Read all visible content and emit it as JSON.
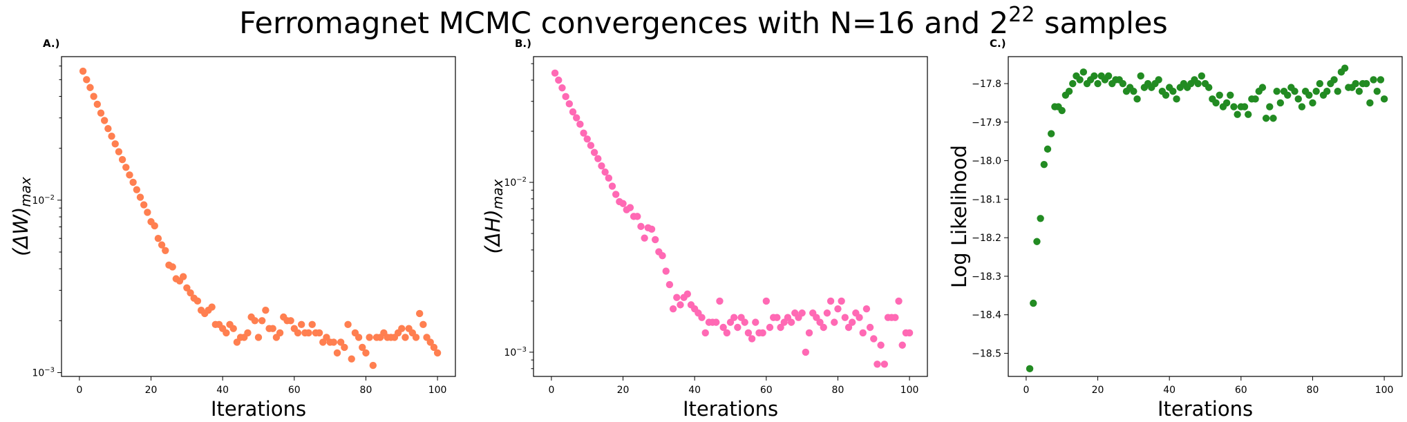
{
  "figure": {
    "suptitle": "Ferromagnet MCMC convergences with N=16 and 2",
    "suptitle_sup": "22",
    "suptitle_tail": " samples"
  },
  "chart_data": [
    {
      "type": "scatter",
      "panel_label": "A.)",
      "xlabel": "Iterations",
      "ylabel_main": "(ΔW)",
      "ylabel_sub": "max",
      "yscale": "log",
      "xlim": [
        -5,
        105
      ],
      "ylim": [
        0.00095,
        0.068
      ],
      "xticks": [
        0,
        20,
        40,
        60,
        80,
        100
      ],
      "yticks": [
        {
          "value": 0.01,
          "base": "10",
          "exp": "−2"
        },
        {
          "value": 0.001,
          "base": "10",
          "exp": "−3"
        }
      ],
      "color": "#ff7f50",
      "x": [
        1,
        2,
        3,
        4,
        5,
        6,
        7,
        8,
        9,
        10,
        11,
        12,
        13,
        14,
        15,
        16,
        17,
        18,
        19,
        20,
        21,
        22,
        23,
        24,
        25,
        26,
        27,
        28,
        29,
        30,
        31,
        32,
        33,
        34,
        35,
        36,
        37,
        38,
        39,
        40,
        41,
        42,
        43,
        44,
        45,
        46,
        47,
        48,
        49,
        50,
        51,
        52,
        53,
        54,
        55,
        56,
        57,
        58,
        59,
        60,
        61,
        62,
        63,
        64,
        65,
        66,
        67,
        68,
        69,
        70,
        71,
        72,
        73,
        74,
        75,
        76,
        77,
        78,
        79,
        80,
        81,
        82,
        83,
        84,
        85,
        86,
        87,
        88,
        89,
        90,
        91,
        92,
        93,
        94,
        95,
        96,
        97,
        98,
        99,
        100
      ],
      "y": [
        0.056,
        0.05,
        0.045,
        0.04,
        0.036,
        0.032,
        0.029,
        0.026,
        0.0235,
        0.0212,
        0.0191,
        0.0172,
        0.0155,
        0.014,
        0.0127,
        0.0115,
        0.0104,
        0.0094,
        0.0085,
        0.0075,
        0.0071,
        0.006,
        0.0055,
        0.0051,
        0.0042,
        0.0041,
        0.0035,
        0.0034,
        0.0036,
        0.0031,
        0.0029,
        0.0027,
        0.0026,
        0.0023,
        0.0022,
        0.0023,
        0.0024,
        0.0019,
        0.0019,
        0.0018,
        0.0017,
        0.0019,
        0.0018,
        0.0015,
        0.0016,
        0.0016,
        0.0017,
        0.0021,
        0.002,
        0.0016,
        0.002,
        0.0023,
        0.0018,
        0.0018,
        0.0016,
        0.0017,
        0.0021,
        0.002,
        0.002,
        0.0018,
        0.0017,
        0.0019,
        0.0017,
        0.0017,
        0.0019,
        0.0017,
        0.0017,
        0.0015,
        0.0016,
        0.0015,
        0.0015,
        0.0013,
        0.0015,
        0.0014,
        0.0019,
        0.0012,
        0.0017,
        0.0016,
        0.0014,
        0.0013,
        0.0016,
        0.0011,
        0.0016,
        0.0016,
        0.0017,
        0.0016,
        0.0016,
        0.0016,
        0.0017,
        0.0018,
        0.0016,
        0.0018,
        0.0017,
        0.0016,
        0.0022,
        0.0019,
        0.0016,
        0.0015,
        0.0014,
        0.0013
      ]
    },
    {
      "type": "scatter",
      "panel_label": "B.)",
      "xlabel": "Iterations",
      "ylabel_main": "(ΔH)",
      "ylabel_sub": "max",
      "yscale": "log",
      "xlim": [
        -5,
        105
      ],
      "ylim": [
        0.00072,
        0.055
      ],
      "xticks": [
        0,
        20,
        40,
        60,
        80,
        100
      ],
      "yticks": [
        {
          "value": 0.01,
          "base": "10",
          "exp": "−2"
        },
        {
          "value": 0.001,
          "base": "10",
          "exp": "−3"
        }
      ],
      "color": "#ff69b4",
      "x": [
        1,
        2,
        3,
        4,
        5,
        6,
        7,
        8,
        9,
        10,
        11,
        12,
        13,
        14,
        15,
        16,
        17,
        18,
        19,
        20,
        21,
        22,
        23,
        24,
        25,
        26,
        27,
        28,
        29,
        30,
        31,
        32,
        33,
        34,
        35,
        36,
        37,
        38,
        39,
        40,
        41,
        42,
        43,
        44,
        45,
        46,
        47,
        48,
        49,
        50,
        51,
        52,
        53,
        54,
        55,
        56,
        57,
        58,
        59,
        60,
        61,
        62,
        63,
        64,
        65,
        66,
        67,
        68,
        69,
        70,
        71,
        72,
        73,
        74,
        75,
        76,
        77,
        78,
        79,
        80,
        81,
        82,
        83,
        84,
        85,
        86,
        87,
        88,
        89,
        90,
        91,
        92,
        93,
        94,
        95,
        96,
        97,
        98,
        99,
        100
      ],
      "y": [
        0.044,
        0.04,
        0.036,
        0.032,
        0.029,
        0.026,
        0.024,
        0.022,
        0.0195,
        0.018,
        0.0165,
        0.015,
        0.0138,
        0.0125,
        0.0115,
        0.0106,
        0.0095,
        0.0085,
        0.0077,
        0.0075,
        0.0069,
        0.0071,
        0.0063,
        0.0063,
        0.0055,
        0.0047,
        0.0054,
        0.0053,
        0.0046,
        0.0039,
        0.0037,
        0.003,
        0.0025,
        0.0018,
        0.0021,
        0.0019,
        0.0021,
        0.0022,
        0.0019,
        0.0018,
        0.0017,
        0.0016,
        0.0013,
        0.0015,
        0.0015,
        0.0015,
        0.002,
        0.0014,
        0.0013,
        0.0015,
        0.0016,
        0.0014,
        0.0016,
        0.0015,
        0.0013,
        0.0012,
        0.0015,
        0.0013,
        0.0013,
        0.002,
        0.0014,
        0.0016,
        0.0016,
        0.0014,
        0.0015,
        0.0016,
        0.0015,
        0.0017,
        0.0016,
        0.0017,
        0.001,
        0.0013,
        0.0017,
        0.0016,
        0.0015,
        0.0014,
        0.0017,
        0.002,
        0.0015,
        0.0018,
        0.002,
        0.0016,
        0.0014,
        0.0015,
        0.0017,
        0.0016,
        0.0013,
        0.0018,
        0.0014,
        0.0012,
        0.00085,
        0.0011,
        0.00085,
        0.0016,
        0.0016,
        0.0016,
        0.002,
        0.0011,
        0.0013,
        0.0013
      ]
    },
    {
      "type": "scatter",
      "panel_label": "C.)",
      "xlabel": "Iterations",
      "ylabel": "Log Likelihood",
      "yscale": "linear",
      "xlim": [
        -5,
        105
      ],
      "ylim": [
        -18.56,
        -17.73
      ],
      "xticks": [
        0,
        20,
        40,
        60,
        80,
        100
      ],
      "yticks": [
        -17.8,
        -17.9,
        -18.0,
        -18.1,
        -18.2,
        -18.3,
        -18.4,
        -18.5
      ],
      "color": "#228b22",
      "x": [
        1,
        2,
        3,
        4,
        5,
        6,
        7,
        8,
        9,
        10,
        11,
        12,
        13,
        14,
        15,
        16,
        17,
        18,
        19,
        20,
        21,
        22,
        23,
        24,
        25,
        26,
        27,
        28,
        29,
        30,
        31,
        32,
        33,
        34,
        35,
        36,
        37,
        38,
        39,
        40,
        41,
        42,
        43,
        44,
        45,
        46,
        47,
        48,
        49,
        50,
        51,
        52,
        53,
        54,
        55,
        56,
        57,
        58,
        59,
        60,
        61,
        62,
        63,
        64,
        65,
        66,
        67,
        68,
        69,
        70,
        71,
        72,
        73,
        74,
        75,
        76,
        77,
        78,
        79,
        80,
        81,
        82,
        83,
        84,
        85,
        86,
        87,
        88,
        89,
        90,
        91,
        92,
        93,
        94,
        95,
        96,
        97,
        98,
        99,
        100
      ],
      "y": [
        -18.54,
        -18.37,
        -18.21,
        -18.15,
        -18.01,
        -17.97,
        -17.93,
        -17.86,
        -17.86,
        -17.87,
        -17.83,
        -17.82,
        -17.8,
        -17.78,
        -17.79,
        -17.77,
        -17.8,
        -17.79,
        -17.78,
        -17.8,
        -17.78,
        -17.79,
        -17.78,
        -17.8,
        -17.79,
        -17.79,
        -17.8,
        -17.82,
        -17.81,
        -17.82,
        -17.84,
        -17.78,
        -17.81,
        -17.8,
        -17.81,
        -17.8,
        -17.79,
        -17.82,
        -17.83,
        -17.81,
        -17.82,
        -17.84,
        -17.81,
        -17.8,
        -17.81,
        -17.8,
        -17.79,
        -17.8,
        -17.78,
        -17.8,
        -17.81,
        -17.84,
        -17.85,
        -17.83,
        -17.86,
        -17.85,
        -17.83,
        -17.86,
        -17.88,
        -17.86,
        -17.86,
        -17.88,
        -17.84,
        -17.84,
        -17.82,
        -17.81,
        -17.89,
        -17.86,
        -17.89,
        -17.82,
        -17.85,
        -17.82,
        -17.83,
        -17.81,
        -17.82,
        -17.84,
        -17.86,
        -17.82,
        -17.83,
        -17.85,
        -17.82,
        -17.8,
        -17.83,
        -17.82,
        -17.8,
        -17.79,
        -17.82,
        -17.77,
        -17.76,
        -17.81,
        -17.81,
        -17.8,
        -17.82,
        -17.8,
        -17.8,
        -17.85,
        -17.79,
        -17.82,
        -17.79,
        -17.84
      ]
    }
  ]
}
